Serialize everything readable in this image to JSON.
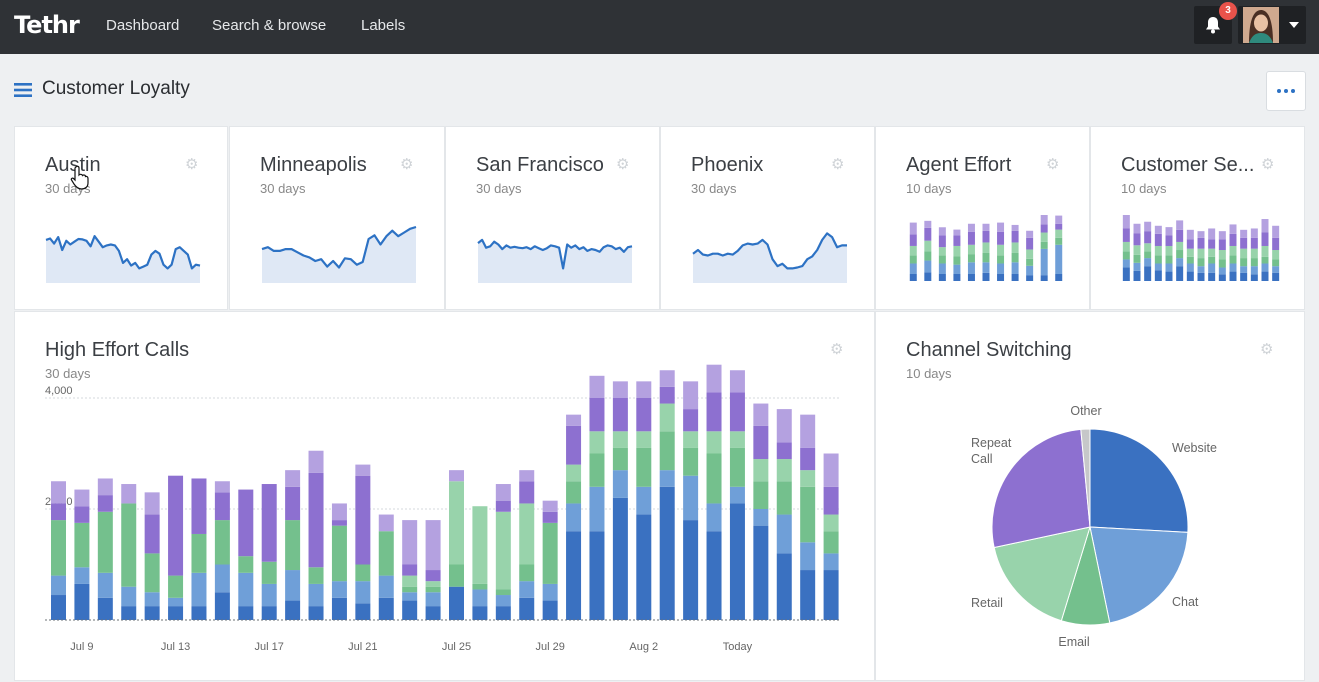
{
  "app": {
    "logo": "Tethr",
    "nav": [
      "Dashboard",
      "Search & browse",
      "Labels"
    ],
    "notification_count": "3"
  },
  "page": {
    "title": "Customer Loyalty"
  },
  "colors": {
    "topbar": "#2f3236",
    "line": "#2d72c4",
    "area": "#dfe8f5",
    "dark_blue": "#3a71c1",
    "light_blue": "#6f9fd8",
    "green": "#74c08d",
    "light_green": "#98d3ab",
    "purple": "#8d70d0",
    "light_purple": "#b4a1e0",
    "grey": "#c6c7c9"
  },
  "cards": {
    "austin": {
      "title": "Austin",
      "subtitle": "30 days"
    },
    "minneapolis": {
      "title": "Minneapolis",
      "subtitle": "30 days"
    },
    "san_francisco": {
      "title": "San Francisco",
      "subtitle": "30 days"
    },
    "phoenix": {
      "title": "Phoenix",
      "subtitle": "30 days"
    },
    "agent_effort": {
      "title": "Agent Effort",
      "subtitle": "10 days"
    },
    "customer_service": {
      "title": "Customer Se...",
      "subtitle": "10 days"
    },
    "high_effort": {
      "title": "High Effort Calls",
      "subtitle": "30 days"
    },
    "channel_switching": {
      "title": "Channel Switching",
      "subtitle": "10 days"
    }
  },
  "chart_data": [
    {
      "id": "austin",
      "type": "area",
      "values": [
        0.72,
        0.75,
        0.64,
        0.78,
        0.5,
        0.7,
        0.62,
        0.68,
        0.74,
        0.73,
        0.7,
        0.58,
        0.8,
        0.68,
        0.56,
        0.6,
        0.62,
        0.6,
        0.48,
        0.22,
        0.3,
        0.16,
        0.22,
        0.1,
        0.14,
        0.18,
        0.4,
        0.48,
        0.42,
        0.18,
        0.1,
        0.18,
        0.52,
        0.56,
        0.48,
        0.4,
        0.1,
        0.18,
        0.16
      ]
    },
    {
      "id": "minneapolis",
      "type": "area",
      "values": [
        0.52,
        0.56,
        0.48,
        0.48,
        0.52,
        0.52,
        0.45,
        0.38,
        0.34,
        0.26,
        0.3,
        0.14,
        0.26,
        0.12,
        0.32,
        0.3,
        0.18,
        0.24,
        0.74,
        0.82,
        0.62,
        0.8,
        0.92,
        0.8,
        0.88,
        0.96,
        1.0
      ]
    },
    {
      "id": "san_francisco",
      "type": "area",
      "values": [
        0.65,
        0.72,
        0.55,
        0.58,
        0.68,
        0.62,
        0.52,
        0.6,
        0.55,
        0.57,
        0.55,
        0.54,
        0.56,
        0.52,
        0.58,
        0.54,
        0.5,
        0.54,
        0.6,
        0.58,
        0.55,
        0.1,
        0.62,
        0.55,
        0.6,
        0.52,
        0.56,
        0.48,
        0.52,
        0.5,
        0.46,
        0.56,
        0.6,
        0.58,
        0.52,
        0.55,
        0.46,
        0.56,
        0.58
      ]
    },
    {
      "id": "phoenix",
      "type": "area",
      "values": [
        0.42,
        0.5,
        0.4,
        0.38,
        0.42,
        0.42,
        0.38,
        0.42,
        0.4,
        0.48,
        0.6,
        0.64,
        0.62,
        0.64,
        0.72,
        0.62,
        0.3,
        0.15,
        0.2,
        0.1,
        0.1,
        0.12,
        0.15,
        0.3,
        0.36,
        0.5,
        0.72,
        0.86,
        0.78,
        0.56,
        0.6,
        0.6
      ]
    },
    {
      "id": "agent_effort",
      "type": "bar",
      "segments": [
        "dark_blue",
        "light_blue",
        "green",
        "light_green",
        "purple",
        "light_purple"
      ],
      "series": [
        [
          0.12,
          0.18,
          0.14,
          0.16,
          0.2,
          0.2
        ],
        [
          0.15,
          0.2,
          0.16,
          0.18,
          0.22,
          0.12
        ],
        [
          0.12,
          0.18,
          0.14,
          0.14,
          0.2,
          0.14
        ],
        [
          0.12,
          0.16,
          0.14,
          0.18,
          0.18,
          0.1
        ],
        [
          0.12,
          0.2,
          0.14,
          0.16,
          0.22,
          0.14
        ],
        [
          0.14,
          0.18,
          0.16,
          0.18,
          0.2,
          0.12
        ],
        [
          0.12,
          0.18,
          0.14,
          0.18,
          0.22,
          0.16
        ],
        [
          0.12,
          0.2,
          0.16,
          0.18,
          0.2,
          0.1
        ],
        [
          0.1,
          0.16,
          0.12,
          0.16,
          0.2,
          0.12
        ],
        [
          0.1,
          0.45,
          0.12,
          0.16,
          0.14,
          0.16
        ],
        [
          0.12,
          0.5,
          0.12,
          0.14,
          0.1,
          0.14
        ]
      ]
    },
    {
      "id": "customer_service",
      "type": "bar",
      "segments": [
        "dark_blue",
        "light_blue",
        "green",
        "light_green",
        "purple",
        "light_purple"
      ],
      "series": [
        [
          0.2,
          0.12,
          0.12,
          0.14,
          0.2,
          0.2
        ],
        [
          0.15,
          0.12,
          0.12,
          0.14,
          0.18,
          0.14
        ],
        [
          0.22,
          0.12,
          0.1,
          0.12,
          0.18,
          0.14
        ],
        [
          0.16,
          0.1,
          0.12,
          0.14,
          0.18,
          0.12
        ],
        [
          0.14,
          0.12,
          0.12,
          0.14,
          0.16,
          0.12
        ],
        [
          0.22,
          0.12,
          0.12,
          0.12,
          0.18,
          0.14
        ],
        [
          0.14,
          0.12,
          0.1,
          0.12,
          0.14,
          0.14
        ],
        [
          0.12,
          0.1,
          0.12,
          0.14,
          0.16,
          0.1
        ],
        [
          0.12,
          0.14,
          0.1,
          0.12,
          0.14,
          0.16
        ],
        [
          0.1,
          0.1,
          0.12,
          0.14,
          0.16,
          0.12
        ],
        [
          0.14,
          0.12,
          0.12,
          0.14,
          0.18,
          0.14
        ],
        [
          0.12,
          0.1,
          0.12,
          0.14,
          0.16,
          0.12
        ],
        [
          0.1,
          0.12,
          0.12,
          0.14,
          0.16,
          0.14
        ],
        [
          0.14,
          0.12,
          0.1,
          0.16,
          0.2,
          0.2
        ],
        [
          0.12,
          0.1,
          0.1,
          0.14,
          0.18,
          0.18
        ]
      ]
    },
    {
      "id": "high_effort",
      "type": "bar",
      "title": "High Effort Calls",
      "subtitle": "30 days",
      "y_ticks": [
        "4,000",
        "2,000"
      ],
      "ylim": [
        0,
        4000
      ],
      "x_tick_labels": [
        "Jul 9",
        "Jul 13",
        "Jul 17",
        "Jul 21",
        "Jul 25",
        "Jul 29",
        "Aug 2",
        "Today"
      ],
      "x_tick_positions": [
        1,
        5,
        9,
        13,
        17,
        21,
        25,
        29
      ],
      "segments": [
        "dark_blue",
        "light_blue",
        "green",
        "light_green",
        "purple",
        "light_purple"
      ],
      "series": [
        [
          450,
          350,
          1000,
          0,
          300,
          400
        ],
        [
          650,
          300,
          800,
          0,
          300,
          300
        ],
        [
          400,
          450,
          1100,
          0,
          300,
          300
        ],
        [
          250,
          350,
          1500,
          0,
          0,
          350
        ],
        [
          250,
          250,
          700,
          0,
          700,
          400
        ],
        [
          250,
          150,
          400,
          0,
          1800,
          0
        ],
        [
          250,
          600,
          700,
          0,
          1000,
          0
        ],
        [
          500,
          500,
          800,
          0,
          500,
          200
        ],
        [
          250,
          600,
          300,
          0,
          1200,
          0
        ],
        [
          250,
          400,
          400,
          0,
          1400,
          0
        ],
        [
          350,
          550,
          900,
          0,
          600,
          300
        ],
        [
          250,
          400,
          300,
          0,
          1700,
          400
        ],
        [
          400,
          300,
          1000,
          0,
          100,
          300
        ],
        [
          300,
          400,
          300,
          0,
          1600,
          200
        ],
        [
          400,
          400,
          800,
          0,
          0,
          300
        ],
        [
          350,
          150,
          100,
          200,
          200,
          800
        ],
        [
          250,
          250,
          100,
          100,
          200,
          900
        ],
        [
          600,
          0,
          400,
          1500,
          0,
          200
        ],
        [
          250,
          300,
          100,
          1400,
          0,
          0
        ],
        [
          250,
          200,
          100,
          1400,
          200,
          300
        ],
        [
          400,
          300,
          300,
          1100,
          400,
          200
        ],
        [
          350,
          300,
          1100,
          0,
          200,
          200
        ],
        [
          1600,
          500,
          400,
          300,
          700,
          200
        ],
        [
          1600,
          800,
          600,
          400,
          600,
          400
        ],
        [
          2200,
          500,
          400,
          300,
          600,
          300
        ],
        [
          1900,
          500,
          700,
          300,
          600,
          300
        ],
        [
          2400,
          300,
          700,
          500,
          300,
          300
        ],
        [
          1800,
          800,
          500,
          300,
          400,
          500
        ],
        [
          1600,
          500,
          900,
          400,
          700,
          500
        ],
        [
          2100,
          300,
          700,
          300,
          700,
          400
        ],
        [
          1700,
          300,
          500,
          400,
          600,
          400
        ],
        [
          1200,
          700,
          600,
          400,
          300,
          600
        ],
        [
          900,
          500,
          1000,
          300,
          400,
          600
        ],
        [
          900,
          300,
          400,
          300,
          500,
          600
        ]
      ]
    },
    {
      "id": "channel_switching",
      "type": "pie",
      "title": "Channel Switching",
      "subtitle": "10 days",
      "slices": [
        {
          "label": "Website",
          "value": 26,
          "color": "#3a71c1"
        },
        {
          "label": "Chat",
          "value": 21,
          "color": "#6f9fd8"
        },
        {
          "label": "Email",
          "value": 8,
          "color": "#74c08d"
        },
        {
          "label": "Retail",
          "value": 17,
          "color": "#98d3ab"
        },
        {
          "label": "Repeat Call",
          "value": 27,
          "color": "#8d70d0"
        },
        {
          "label": "Other",
          "value": 1.5,
          "color": "#c6c7c9"
        }
      ]
    }
  ]
}
